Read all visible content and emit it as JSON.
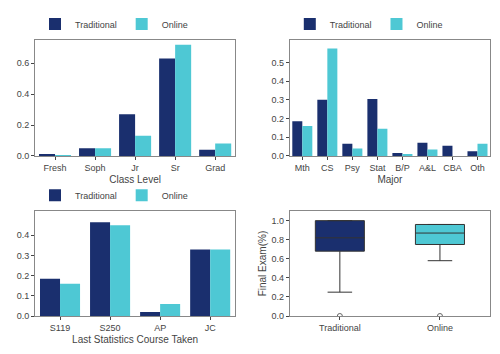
{
  "chart_data": [
    {
      "type": "bar",
      "xlabel": "Class Level",
      "categories": [
        "Fresh",
        "Soph",
        "Jr",
        "Sr",
        "Grad"
      ],
      "series": [
        {
          "name": "Traditional",
          "color": "#1a2f6e",
          "values": [
            0.01,
            0.05,
            0.27,
            0.63,
            0.04
          ]
        },
        {
          "name": "Online",
          "color": "#4ec8d4",
          "values": [
            0.005,
            0.05,
            0.13,
            0.72,
            0.08
          ]
        }
      ],
      "ylim": [
        0,
        0.75
      ],
      "yticks": [
        {
          "value": 0.0,
          "label": "0.0"
        },
        0.2,
        0.4,
        0.6
      ],
      "grid": false,
      "legend": "upper left"
    },
    {
      "type": "bar",
      "xlabel": "Major",
      "categories": [
        "Mth",
        "CS",
        "Psy",
        "Stat",
        "B/P",
        "A&L",
        "CBA",
        "Oth"
      ],
      "series": [
        {
          "name": "Traditional",
          "color": "#1a2f6e",
          "values": [
            0.185,
            0.3,
            0.065,
            0.305,
            0.015,
            0.07,
            0.055,
            0.025
          ]
        },
        {
          "name": "Online",
          "color": "#4ec8d4",
          "values": [
            0.16,
            0.575,
            0.04,
            0.145,
            0.005,
            0.035,
            0.0,
            0.065
          ]
        }
      ],
      "ylim": [
        0,
        0.62
      ],
      "yticks": [
        {
          "value": 0.0,
          "label": "0.0"
        },
        0.1,
        0.2,
        0.3,
        0.4,
        0.5
      ],
      "grid": false,
      "legend": "upper left"
    },
    {
      "type": "bar",
      "xlabel": "Last Statistics Course Taken",
      "categories": [
        "S119",
        "S250",
        "AP",
        "JC"
      ],
      "series": [
        {
          "name": "Traditional",
          "color": "#1a2f6e",
          "values": [
            0.185,
            0.465,
            0.02,
            0.33
          ]
        },
        {
          "name": "Online",
          "color": "#4ec8d4",
          "values": [
            0.16,
            0.45,
            0.06,
            0.33
          ]
        }
      ],
      "ylim": [
        0,
        0.52
      ],
      "yticks": [
        {
          "value": 0.0,
          "label": "0.0"
        },
        0.1,
        0.2,
        0.3,
        0.4
      ],
      "grid": false,
      "legend": "upper left"
    },
    {
      "type": "box",
      "ylabel": "Final Exam(%)",
      "categories": [
        "Traditional",
        "Online"
      ],
      "colors": [
        "#1a2f6e",
        "#4ec8d4"
      ],
      "q1": [
        0.68,
        0.75
      ],
      "median": [
        0.82,
        0.87
      ],
      "q3": [
        1.0,
        0.96
      ],
      "whislo": [
        0.25,
        0.58
      ],
      "whishi": [
        1.0,
        0.96
      ],
      "fliers": [
        [
          0.0
        ],
        [
          0.0
        ]
      ],
      "ylim": [
        0,
        1.1
      ],
      "yticks": [
        {
          "value": 0.0,
          "label": "0.0"
        },
        0.2,
        0.4,
        0.6,
        0.8,
        {
          "value": 1.0,
          "label": "1.0"
        }
      ],
      "grid": false
    }
  ]
}
